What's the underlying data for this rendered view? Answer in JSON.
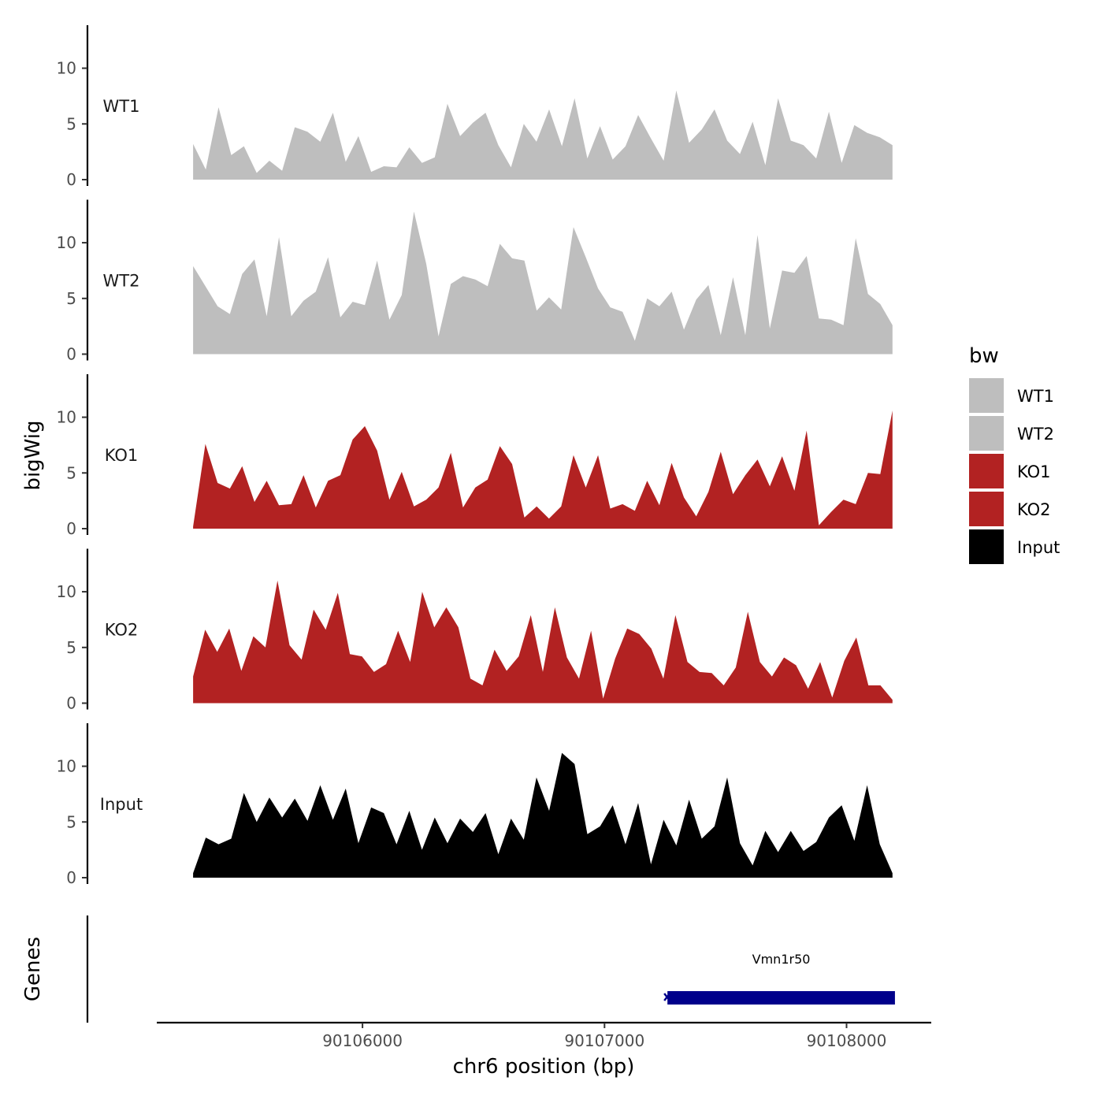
{
  "chart_data": {
    "type": "area",
    "title": "",
    "xlabel": "chr6 position (bp)",
    "ylabel": "bigWig",
    "genes_label": "Genes",
    "xlim": [
      90105150,
      90108350
    ],
    "x_start": 90105300,
    "x_end": 90108190,
    "ylim": [
      0,
      14
    ],
    "x_ticks": [
      90106000,
      90107000,
      90108000
    ],
    "x_tick_labels": [
      "90106000",
      "90107000",
      "90108000"
    ],
    "y_ticks": [
      0,
      5,
      10
    ],
    "y_tick_labels": [
      "0",
      "5",
      "10"
    ],
    "legend": {
      "title": "bw",
      "entries": [
        {
          "name": "WT1",
          "color": "#bebebe"
        },
        {
          "name": "WT2",
          "color": "#bebebe"
        },
        {
          "name": "KO1",
          "color": "#b22222"
        },
        {
          "name": "KO2",
          "color": "#b22222"
        },
        {
          "name": "Input",
          "color": "#000000"
        }
      ]
    },
    "series": [
      {
        "name": "WT1",
        "color": "#bebebe",
        "values": [
          3.2,
          0.9,
          6.5,
          2.2,
          3.0,
          0.6,
          1.7,
          0.8,
          4.7,
          4.3,
          3.4,
          6.0,
          1.6,
          3.9,
          0.7,
          1.2,
          1.1,
          2.9,
          1.5,
          2.0,
          6.8,
          3.9,
          5.1,
          6.0,
          3.1,
          1.1,
          5.0,
          3.4,
          6.3,
          3.0,
          7.3,
          1.9,
          4.8,
          1.8,
          3.0,
          5.8,
          3.7,
          1.7,
          8.0,
          3.3,
          4.5,
          6.3,
          3.5,
          2.3,
          5.2,
          1.3,
          7.3,
          3.5,
          3.1,
          1.9,
          6.1,
          1.5,
          4.9,
          4.2,
          3.8,
          3.1
        ]
      },
      {
        "name": "WT2",
        "color": "#bebebe",
        "values": [
          7.9,
          6.1,
          4.3,
          3.6,
          7.2,
          8.5,
          3.4,
          10.5,
          3.4,
          4.8,
          5.6,
          8.7,
          3.3,
          4.7,
          4.4,
          8.4,
          3.1,
          5.3,
          12.8,
          8.1,
          1.6,
          6.3,
          7.0,
          6.7,
          6.1,
          9.9,
          8.6,
          8.4,
          3.9,
          5.1,
          4.0,
          11.4,
          8.7,
          5.9,
          4.2,
          3.8,
          1.2,
          5.0,
          4.3,
          5.6,
          2.2,
          4.9,
          6.2,
          1.7,
          6.9,
          1.7,
          10.7,
          2.3,
          7.5,
          7.3,
          8.8,
          3.2,
          3.1,
          2.6,
          10.4,
          5.4,
          4.5,
          2.6
        ]
      },
      {
        "name": "KO1",
        "color": "#b22222",
        "values": [
          0.2,
          7.6,
          4.1,
          3.6,
          5.6,
          2.4,
          4.3,
          2.1,
          2.2,
          4.8,
          1.9,
          4.3,
          4.8,
          8.0,
          9.2,
          7.0,
          2.6,
          5.1,
          2.0,
          2.6,
          3.7,
          6.8,
          1.9,
          3.7,
          4.4,
          7.4,
          5.8,
          1.0,
          2.0,
          0.9,
          2.0,
          6.6,
          3.7,
          6.6,
          1.8,
          2.2,
          1.6,
          4.3,
          2.1,
          5.9,
          2.8,
          1.1,
          3.3,
          6.9,
          3.1,
          4.8,
          6.2,
          3.8,
          6.5,
          3.4,
          8.8,
          0.3,
          1.5,
          2.6,
          2.2,
          5.0,
          4.9,
          10.6
        ]
      },
      {
        "name": "KO2",
        "color": "#b22222",
        "values": [
          2.4,
          6.6,
          4.6,
          6.7,
          2.9,
          6.0,
          5.0,
          11.0,
          5.2,
          3.9,
          8.4,
          6.6,
          9.9,
          4.4,
          4.2,
          2.8,
          3.5,
          6.5,
          3.7,
          10.0,
          6.8,
          8.6,
          6.8,
          2.2,
          1.6,
          4.8,
          2.9,
          4.2,
          7.9,
          2.8,
          8.6,
          4.1,
          2.2,
          6.5,
          0.4,
          4.0,
          6.7,
          6.2,
          4.9,
          2.2,
          7.9,
          3.7,
          2.8,
          2.7,
          1.6,
          3.2,
          8.2,
          3.7,
          2.4,
          4.1,
          3.4,
          1.3,
          3.7,
          0.5,
          3.8,
          5.9,
          1.6,
          1.6,
          0.3
        ]
      },
      {
        "name": "Input",
        "color": "#000000",
        "values": [
          0.4,
          3.6,
          3.0,
          3.5,
          7.6,
          5.0,
          7.2,
          5.4,
          7.1,
          5.1,
          8.3,
          5.2,
          8.0,
          3.1,
          6.3,
          5.8,
          3.0,
          6.0,
          2.5,
          5.4,
          3.1,
          5.3,
          4.1,
          5.8,
          2.1,
          5.3,
          3.4,
          9.0,
          6.0,
          11.2,
          10.2,
          3.9,
          4.6,
          6.5,
          3.0,
          6.7,
          1.2,
          5.2,
          2.9,
          7.0,
          3.5,
          4.6,
          9.0,
          3.1,
          1.1,
          4.2,
          2.3,
          4.2,
          2.4,
          3.2,
          5.4,
          6.5,
          3.3,
          8.3,
          3.0,
          0.4
        ]
      }
    ],
    "genes": [
      {
        "name": "Vmn1r50",
        "start": 90107260,
        "end": 90108200,
        "color": "#00008b"
      }
    ]
  }
}
